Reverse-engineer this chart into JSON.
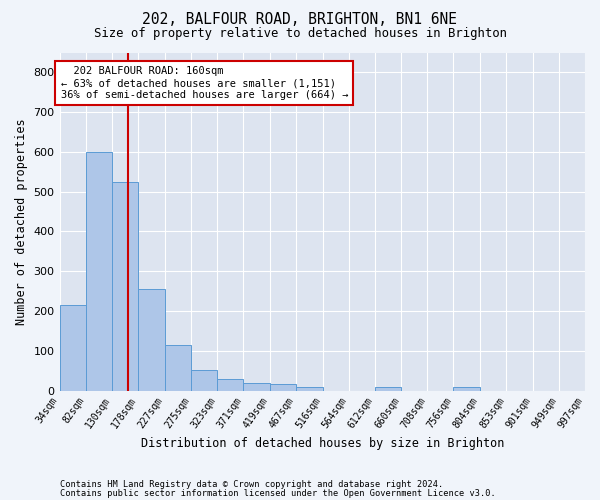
{
  "title1": "202, BALFOUR ROAD, BRIGHTON, BN1 6NE",
  "title2": "Size of property relative to detached houses in Brighton",
  "xlabel": "Distribution of detached houses by size in Brighton",
  "ylabel": "Number of detached properties",
  "footer1": "Contains HM Land Registry data © Crown copyright and database right 2024.",
  "footer2": "Contains public sector information licensed under the Open Government Licence v3.0.",
  "annotation_line1": "202 BALFOUR ROAD: 160sqm",
  "annotation_line2": "← 63% of detached houses are smaller (1,151)",
  "annotation_line3": "36% of semi-detached houses are larger (664) →",
  "subject_value": 160,
  "bin_edges": [
    34,
    82,
    130,
    178,
    227,
    275,
    323,
    371,
    419,
    467,
    516,
    564,
    612,
    660,
    708,
    756,
    804,
    853,
    901,
    949,
    997
  ],
  "bar_heights": [
    215,
    600,
    525,
    255,
    115,
    52,
    30,
    20,
    16,
    10,
    0,
    0,
    10,
    0,
    0,
    10,
    0,
    0,
    0,
    0
  ],
  "bar_color": "#aec6e8",
  "bar_edge_color": "#5b9bd5",
  "subject_line_color": "#cc0000",
  "annotation_box_edge_color": "#cc0000",
  "fig_bg_color": "#f0f4fa",
  "plot_bg_color": "#dde4f0",
  "grid_color": "#ffffff",
  "ylim": [
    0,
    850
  ],
  "yticks": [
    0,
    100,
    200,
    300,
    400,
    500,
    600,
    700,
    800
  ]
}
